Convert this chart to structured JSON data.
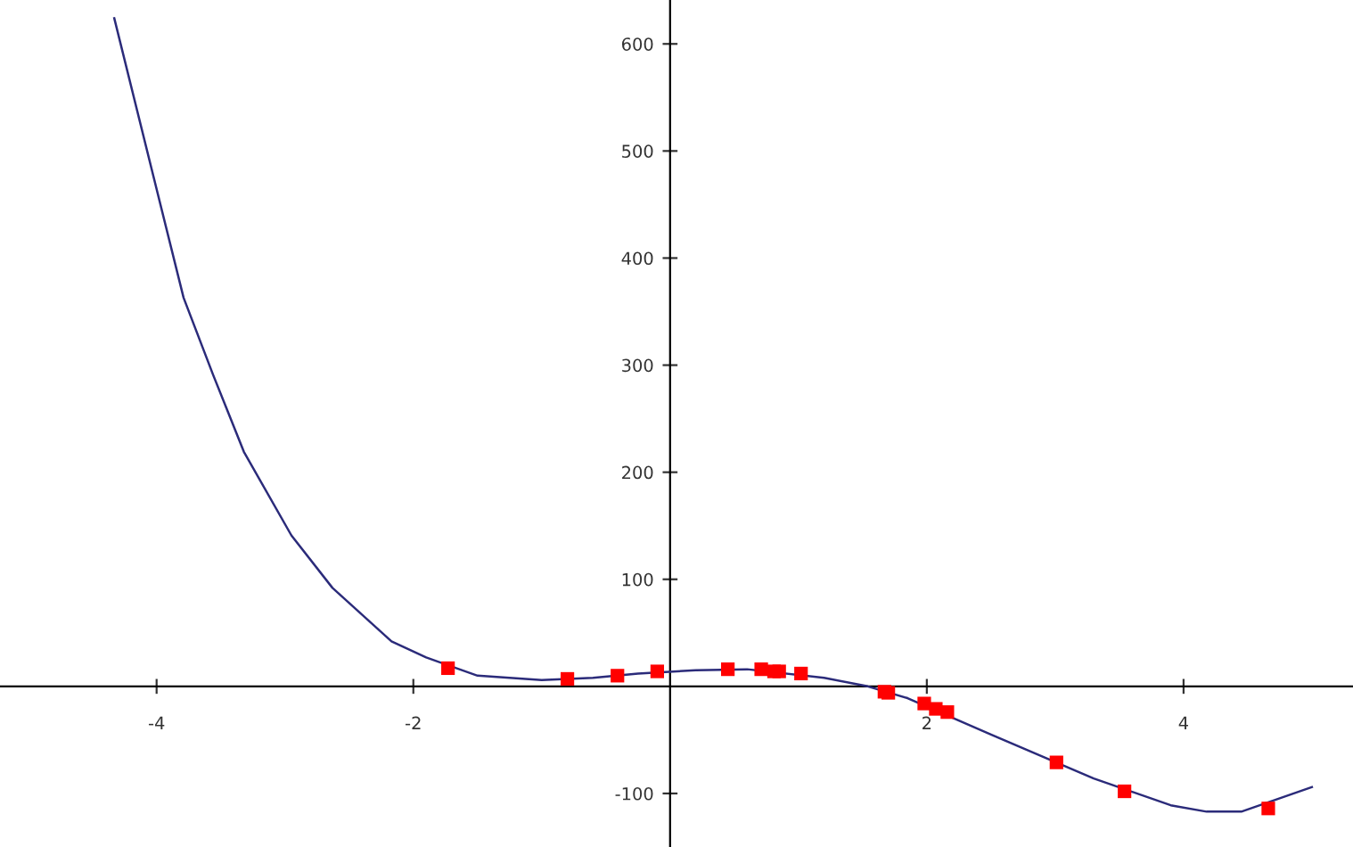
{
  "chart_data": {
    "type": "line",
    "xlim": [
      -5.22,
      5.32
    ],
    "ylim": [
      -150,
      641
    ],
    "xticks": [
      -4,
      -2,
      2,
      4
    ],
    "yticks": [
      -100,
      100,
      200,
      300,
      400,
      500,
      600
    ],
    "grid": false,
    "series": [
      {
        "color": "#2b2b7a",
        "marker": "none",
        "line_style": "solid",
        "x": [
          -4.33,
          -4.02,
          -3.79,
          -3.56,
          -3.32,
          -2.95,
          -2.63,
          -2.17,
          -1.9,
          -1.5,
          -1.0,
          -0.6,
          -0.25,
          0.2,
          0.6,
          1.2,
          1.54,
          1.85,
          2.5,
          3.3,
          3.9,
          4.18,
          4.45,
          5.0
        ],
        "values": [
          624,
          474,
          363,
          291,
          219,
          141,
          92,
          42,
          27,
          10,
          6,
          8,
          12,
          15,
          16,
          8,
          0,
          -11,
          -45,
          -86,
          -111,
          -117,
          -117,
          -94
        ]
      },
      {
        "type": "scatter",
        "color": "#ff0000",
        "marker": "square",
        "x": [
          -1.73,
          -0.8,
          -0.41,
          -0.1,
          0.45,
          0.71,
          0.81,
          0.85,
          1.02,
          1.67,
          1.7,
          1.98,
          2.07,
          2.16,
          3.01,
          3.54,
          4.66
        ],
        "values": [
          17,
          7,
          10,
          14,
          16,
          16,
          14,
          14,
          12,
          -5,
          -6,
          -16,
          -21,
          -24,
          -71,
          -98,
          -114
        ]
      }
    ]
  }
}
